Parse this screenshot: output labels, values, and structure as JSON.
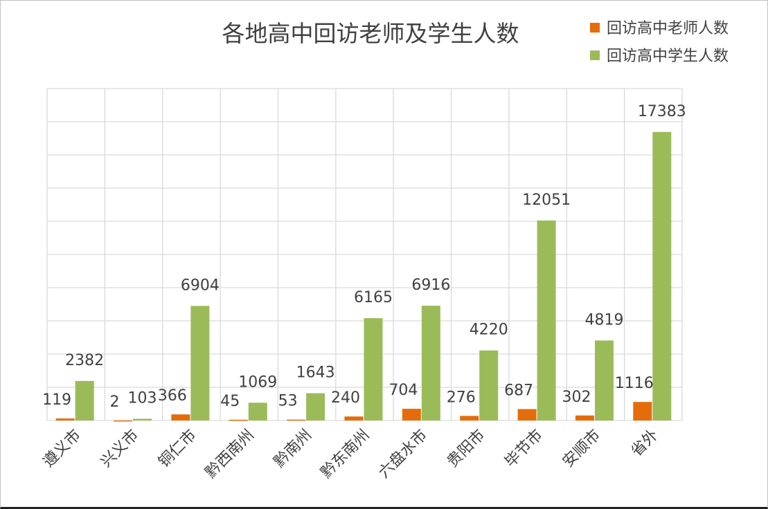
{
  "chart_data": {
    "type": "bar",
    "title": "各地高中回访老师及学生人数",
    "categories": [
      "遵义市",
      "兴义市",
      "铜仁市",
      "黔西南州",
      "黔南州",
      "黔东南州",
      "六盘水市",
      "贵阳市",
      "毕节市",
      "安顺市",
      "省外"
    ],
    "series": [
      {
        "name": "回访高中老师人数",
        "color": "#e46c0a",
        "values": [
          119,
          2,
          366,
          45,
          53,
          240,
          704,
          276,
          687,
          302,
          1116
        ]
      },
      {
        "name": "回访高中学生人数",
        "color": "#9bbb59",
        "values": [
          2382,
          103,
          6904,
          1069,
          1643,
          6165,
          6916,
          4220,
          12051,
          4819,
          17383
        ]
      }
    ],
    "xlabel": "",
    "ylabel": "",
    "ylim": [
      0,
      20000
    ],
    "ytick_step": 2000,
    "y_tick_labels_shown": false,
    "grid": true,
    "legend": "top-right",
    "data_labels": true
  }
}
